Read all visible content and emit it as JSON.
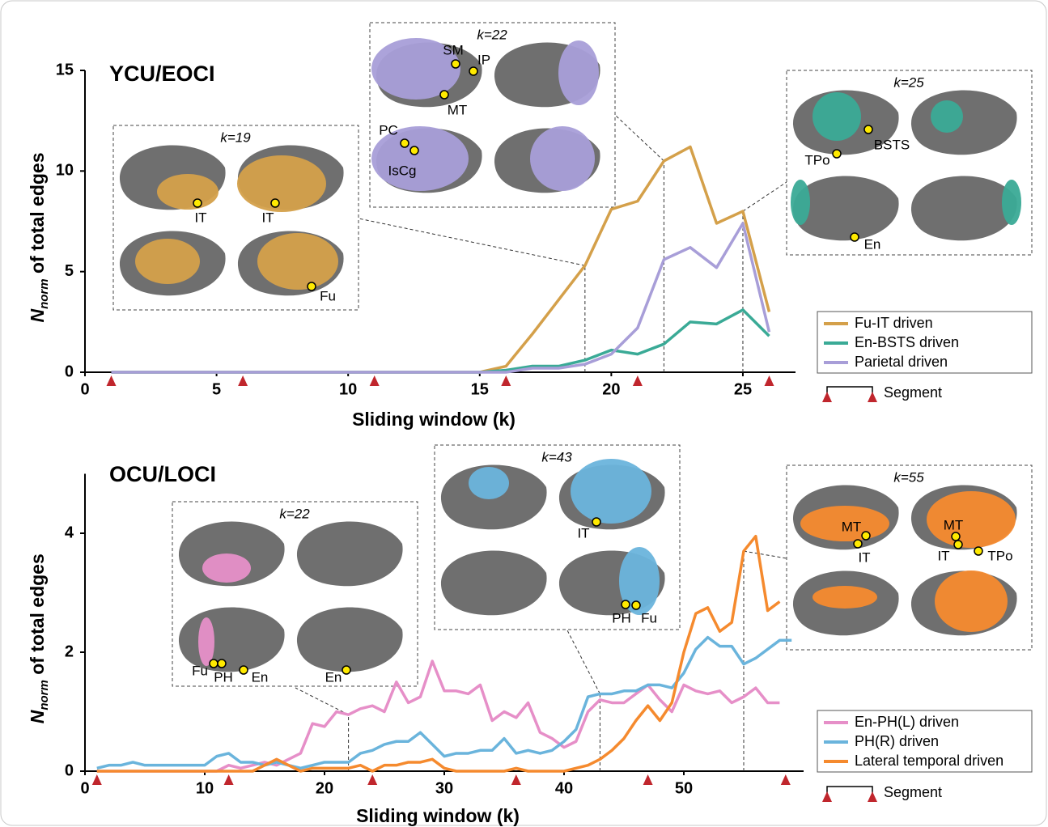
{
  "chart_data": [
    {
      "type": "line",
      "title": "YCU/EOCI",
      "y_label": {
        "symbol": "N",
        "subscript": "norm",
        "text": " of total edges"
      },
      "x_label": "Sliding window (k)",
      "xlim": [
        0,
        27
      ],
      "ylim": [
        0,
        15
      ],
      "xticks": [
        0,
        5,
        10,
        15,
        20,
        25
      ],
      "yticks": [
        0,
        5,
        10,
        15
      ],
      "x": [
        1,
        2,
        3,
        4,
        5,
        6,
        7,
        8,
        9,
        10,
        11,
        12,
        13,
        14,
        15,
        16,
        17,
        18,
        19,
        20,
        21,
        22,
        23,
        24,
        25,
        26
      ],
      "series": [
        {
          "name": "Fu-IT driven",
          "color": "#d4a04a",
          "values": [
            0,
            0,
            0,
            0,
            0,
            0,
            0,
            0,
            0,
            0,
            0,
            0,
            0,
            0,
            0,
            0.3,
            1.9,
            3.6,
            5.3,
            8.1,
            8.5,
            10.5,
            11.2,
            7.4,
            8.0,
            3.0
          ]
        },
        {
          "name": "En-BSTS driven",
          "color": "#3aaa96",
          "values": [
            0,
            0,
            0,
            0,
            0,
            0,
            0,
            0,
            0,
            0,
            0,
            0,
            0,
            0,
            0,
            0.1,
            0.3,
            0.3,
            0.6,
            1.1,
            0.9,
            1.4,
            2.5,
            2.4,
            3.1,
            1.8
          ]
        },
        {
          "name": "Parietal driven",
          "color": "#a89ed8",
          "values": [
            0,
            0,
            0,
            0,
            0,
            0,
            0,
            0,
            0,
            0,
            0,
            0,
            0,
            0,
            0,
            0,
            0.2,
            0.2,
            0.4,
            0.9,
            2.2,
            5.6,
            6.2,
            5.2,
            7.4,
            2.0
          ]
        }
      ],
      "segment_markers": [
        1,
        6,
        11,
        16,
        21,
        26
      ],
      "segment_label": "Segment",
      "insets": [
        {
          "label": "k=19",
          "k": 19,
          "series": 0,
          "regions": [
            "IT",
            "IT",
            "Fu"
          ]
        },
        {
          "label": "k=22",
          "k": 22,
          "series": 2,
          "regions": [
            "SM",
            "IP",
            "MT",
            "PC",
            "IsCg"
          ]
        },
        {
          "label": "k=25",
          "k": 25,
          "series": 1,
          "regions": [
            "BSTS",
            "TPo",
            "En"
          ]
        }
      ]
    },
    {
      "type": "line",
      "title": "OCU/LOCI",
      "y_label": {
        "symbol": "N",
        "subscript": "norm",
        "text": " of total edges"
      },
      "x_label": "Sliding window (k)",
      "xlim": [
        0,
        60
      ],
      "ylim": [
        0,
        5
      ],
      "xticks": [
        0,
        10,
        20,
        30,
        40,
        50
      ],
      "yticks": [
        0,
        2,
        4
      ],
      "x": [
        1,
        2,
        3,
        4,
        5,
        6,
        7,
        8,
        9,
        10,
        11,
        12,
        13,
        14,
        15,
        16,
        17,
        18,
        19,
        20,
        21,
        22,
        23,
        24,
        25,
        26,
        27,
        28,
        29,
        30,
        31,
        32,
        33,
        34,
        35,
        36,
        37,
        38,
        39,
        40,
        41,
        42,
        43,
        44,
        45,
        46,
        47,
        48,
        49,
        50,
        51,
        52,
        53,
        54,
        55,
        56,
        57,
        58,
        59
      ],
      "series": [
        {
          "name": "En-PH(L) driven",
          "color": "#e68fc8",
          "values": [
            0,
            0,
            0,
            0,
            0,
            0,
            0,
            0,
            0,
            0,
            0,
            0.1,
            0.05,
            0.1,
            0.15,
            0.1,
            0.2,
            0.3,
            0.8,
            0.75,
            1.0,
            0.95,
            1.05,
            1.1,
            1.0,
            1.5,
            1.15,
            1.25,
            1.85,
            1.35,
            1.35,
            1.3,
            1.45,
            0.85,
            1.0,
            0.9,
            1.15,
            0.65,
            0.55,
            0.4,
            0.5,
            1.0,
            1.2,
            1.15,
            1.15,
            1.3,
            1.45,
            1.2,
            1.0,
            1.45,
            1.35,
            1.3,
            1.35,
            1.15,
            1.25,
            1.4,
            1.15,
            1.15,
            null
          ]
        },
        {
          "name": "PH(R) driven",
          "color": "#6ab4dc",
          "values": [
            0.05,
            0.1,
            0.1,
            0.15,
            0.1,
            0.1,
            0.1,
            0.1,
            0.1,
            0.1,
            0.25,
            0.3,
            0.15,
            0.15,
            0.1,
            0.15,
            0.1,
            0.05,
            0.1,
            0.15,
            0.15,
            0.15,
            0.3,
            0.35,
            0.45,
            0.5,
            0.5,
            0.65,
            0.45,
            0.25,
            0.3,
            0.3,
            0.35,
            0.35,
            0.55,
            0.3,
            0.35,
            0.3,
            0.35,
            0.5,
            0.7,
            1.25,
            1.3,
            1.3,
            1.35,
            1.35,
            1.45,
            1.45,
            1.4,
            1.65,
            2.05,
            2.25,
            2.1,
            2.1,
            1.8,
            1.9,
            2.05,
            2.2,
            2.2
          ]
        },
        {
          "name": "Lateral temporal driven",
          "color": "#f58a2e",
          "values": [
            0,
            0,
            0,
            0,
            0,
            0,
            0,
            0,
            0,
            0,
            0,
            0,
            0,
            0,
            0.1,
            0.2,
            0.1,
            0,
            0.05,
            0.05,
            0.05,
            0.05,
            0.1,
            0,
            0.1,
            0.1,
            0.15,
            0.15,
            0.2,
            0.05,
            0,
            0,
            0,
            0,
            0,
            0.05,
            0,
            0,
            0,
            0,
            0.05,
            0.1,
            0.2,
            0.35,
            0.55,
            0.85,
            1.1,
            0.85,
            1.15,
            2.0,
            2.65,
            2.75,
            2.35,
            2.5,
            3.7,
            3.95,
            2.7,
            2.85,
            null
          ]
        }
      ],
      "segment_markers": [
        1,
        12,
        24,
        36,
        47,
        58.5
      ],
      "segment_label": "Segment",
      "insets": [
        {
          "label": "k=22",
          "k": 22,
          "series": 0,
          "regions": [
            "Fu",
            "PH",
            "En",
            "En"
          ]
        },
        {
          "label": "k=43",
          "k": 43,
          "series": 1,
          "regions": [
            "IT",
            "PH",
            "Fu"
          ]
        },
        {
          "label": "k=55",
          "k": 55,
          "series": 2,
          "regions": [
            "MT",
            "IT",
            "MT",
            "IT",
            "TPo"
          ]
        }
      ]
    }
  ]
}
